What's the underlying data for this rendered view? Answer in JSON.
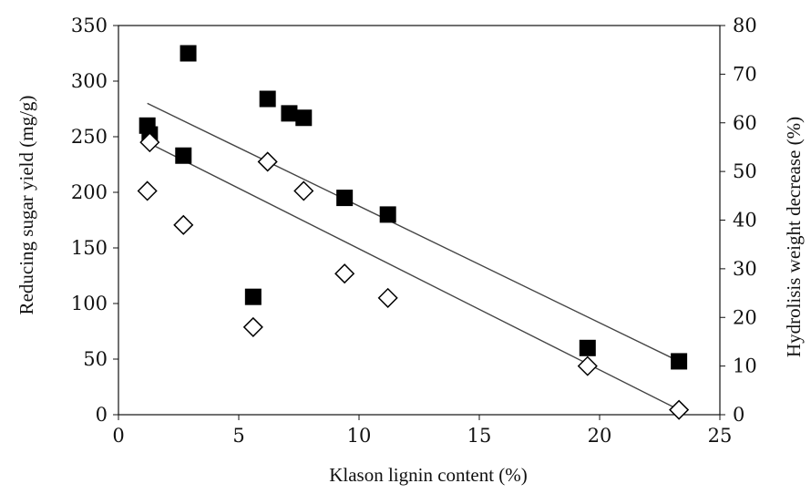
{
  "chart_data": {
    "type": "scatter",
    "xlabel": "Klason lignin content (%)",
    "ylabel_left": "Reducing sugar yield (mg/g)",
    "ylabel_right": "Hydrolisis weight decrease (%)",
    "xlim": [
      0,
      25
    ],
    "ylim_left": [
      0,
      350
    ],
    "ylim_right": [
      0,
      80
    ],
    "x_ticks": [
      "0",
      "5",
      "10",
      "15",
      "20",
      "25"
    ],
    "y_left_ticks": [
      "0",
      "50",
      "100",
      "150",
      "200",
      "250",
      "300",
      "350"
    ],
    "y_right_ticks": [
      "0",
      "10",
      "20",
      "30",
      "40",
      "50",
      "60",
      "70",
      "80"
    ],
    "grid": false,
    "series": [
      {
        "marker": "filled-square",
        "axis": "left",
        "color": "#000000",
        "points": [
          {
            "x": 1.2,
            "y": 260
          },
          {
            "x": 1.3,
            "y": 252
          },
          {
            "x": 2.7,
            "y": 233
          },
          {
            "x": 2.9,
            "y": 325
          },
          {
            "x": 5.6,
            "y": 106
          },
          {
            "x": 6.2,
            "y": 284
          },
          {
            "x": 7.1,
            "y": 271
          },
          {
            "x": 7.7,
            "y": 267
          },
          {
            "x": 9.4,
            "y": 195
          },
          {
            "x": 11.2,
            "y": 180
          },
          {
            "x": 19.5,
            "y": 60
          },
          {
            "x": 23.3,
            "y": 48
          }
        ],
        "trendline": {
          "x1": 1.2,
          "y1": 280,
          "x2": 23.3,
          "y2": 48
        }
      },
      {
        "marker": "open-diamond",
        "axis": "right",
        "color": "#000000",
        "points": [
          {
            "x": 1.2,
            "y": 46
          },
          {
            "x": 1.3,
            "y": 56
          },
          {
            "x": 2.7,
            "y": 39
          },
          {
            "x": 5.6,
            "y": 18
          },
          {
            "x": 6.2,
            "y": 52
          },
          {
            "x": 7.7,
            "y": 46
          },
          {
            "x": 9.4,
            "y": 29
          },
          {
            "x": 11.2,
            "y": 24
          },
          {
            "x": 19.5,
            "y": 10
          },
          {
            "x": 23.3,
            "y": 1
          }
        ],
        "trendline": {
          "x1": 1.2,
          "y1": 56,
          "x2": 23.3,
          "y2": 1
        }
      }
    ]
  }
}
